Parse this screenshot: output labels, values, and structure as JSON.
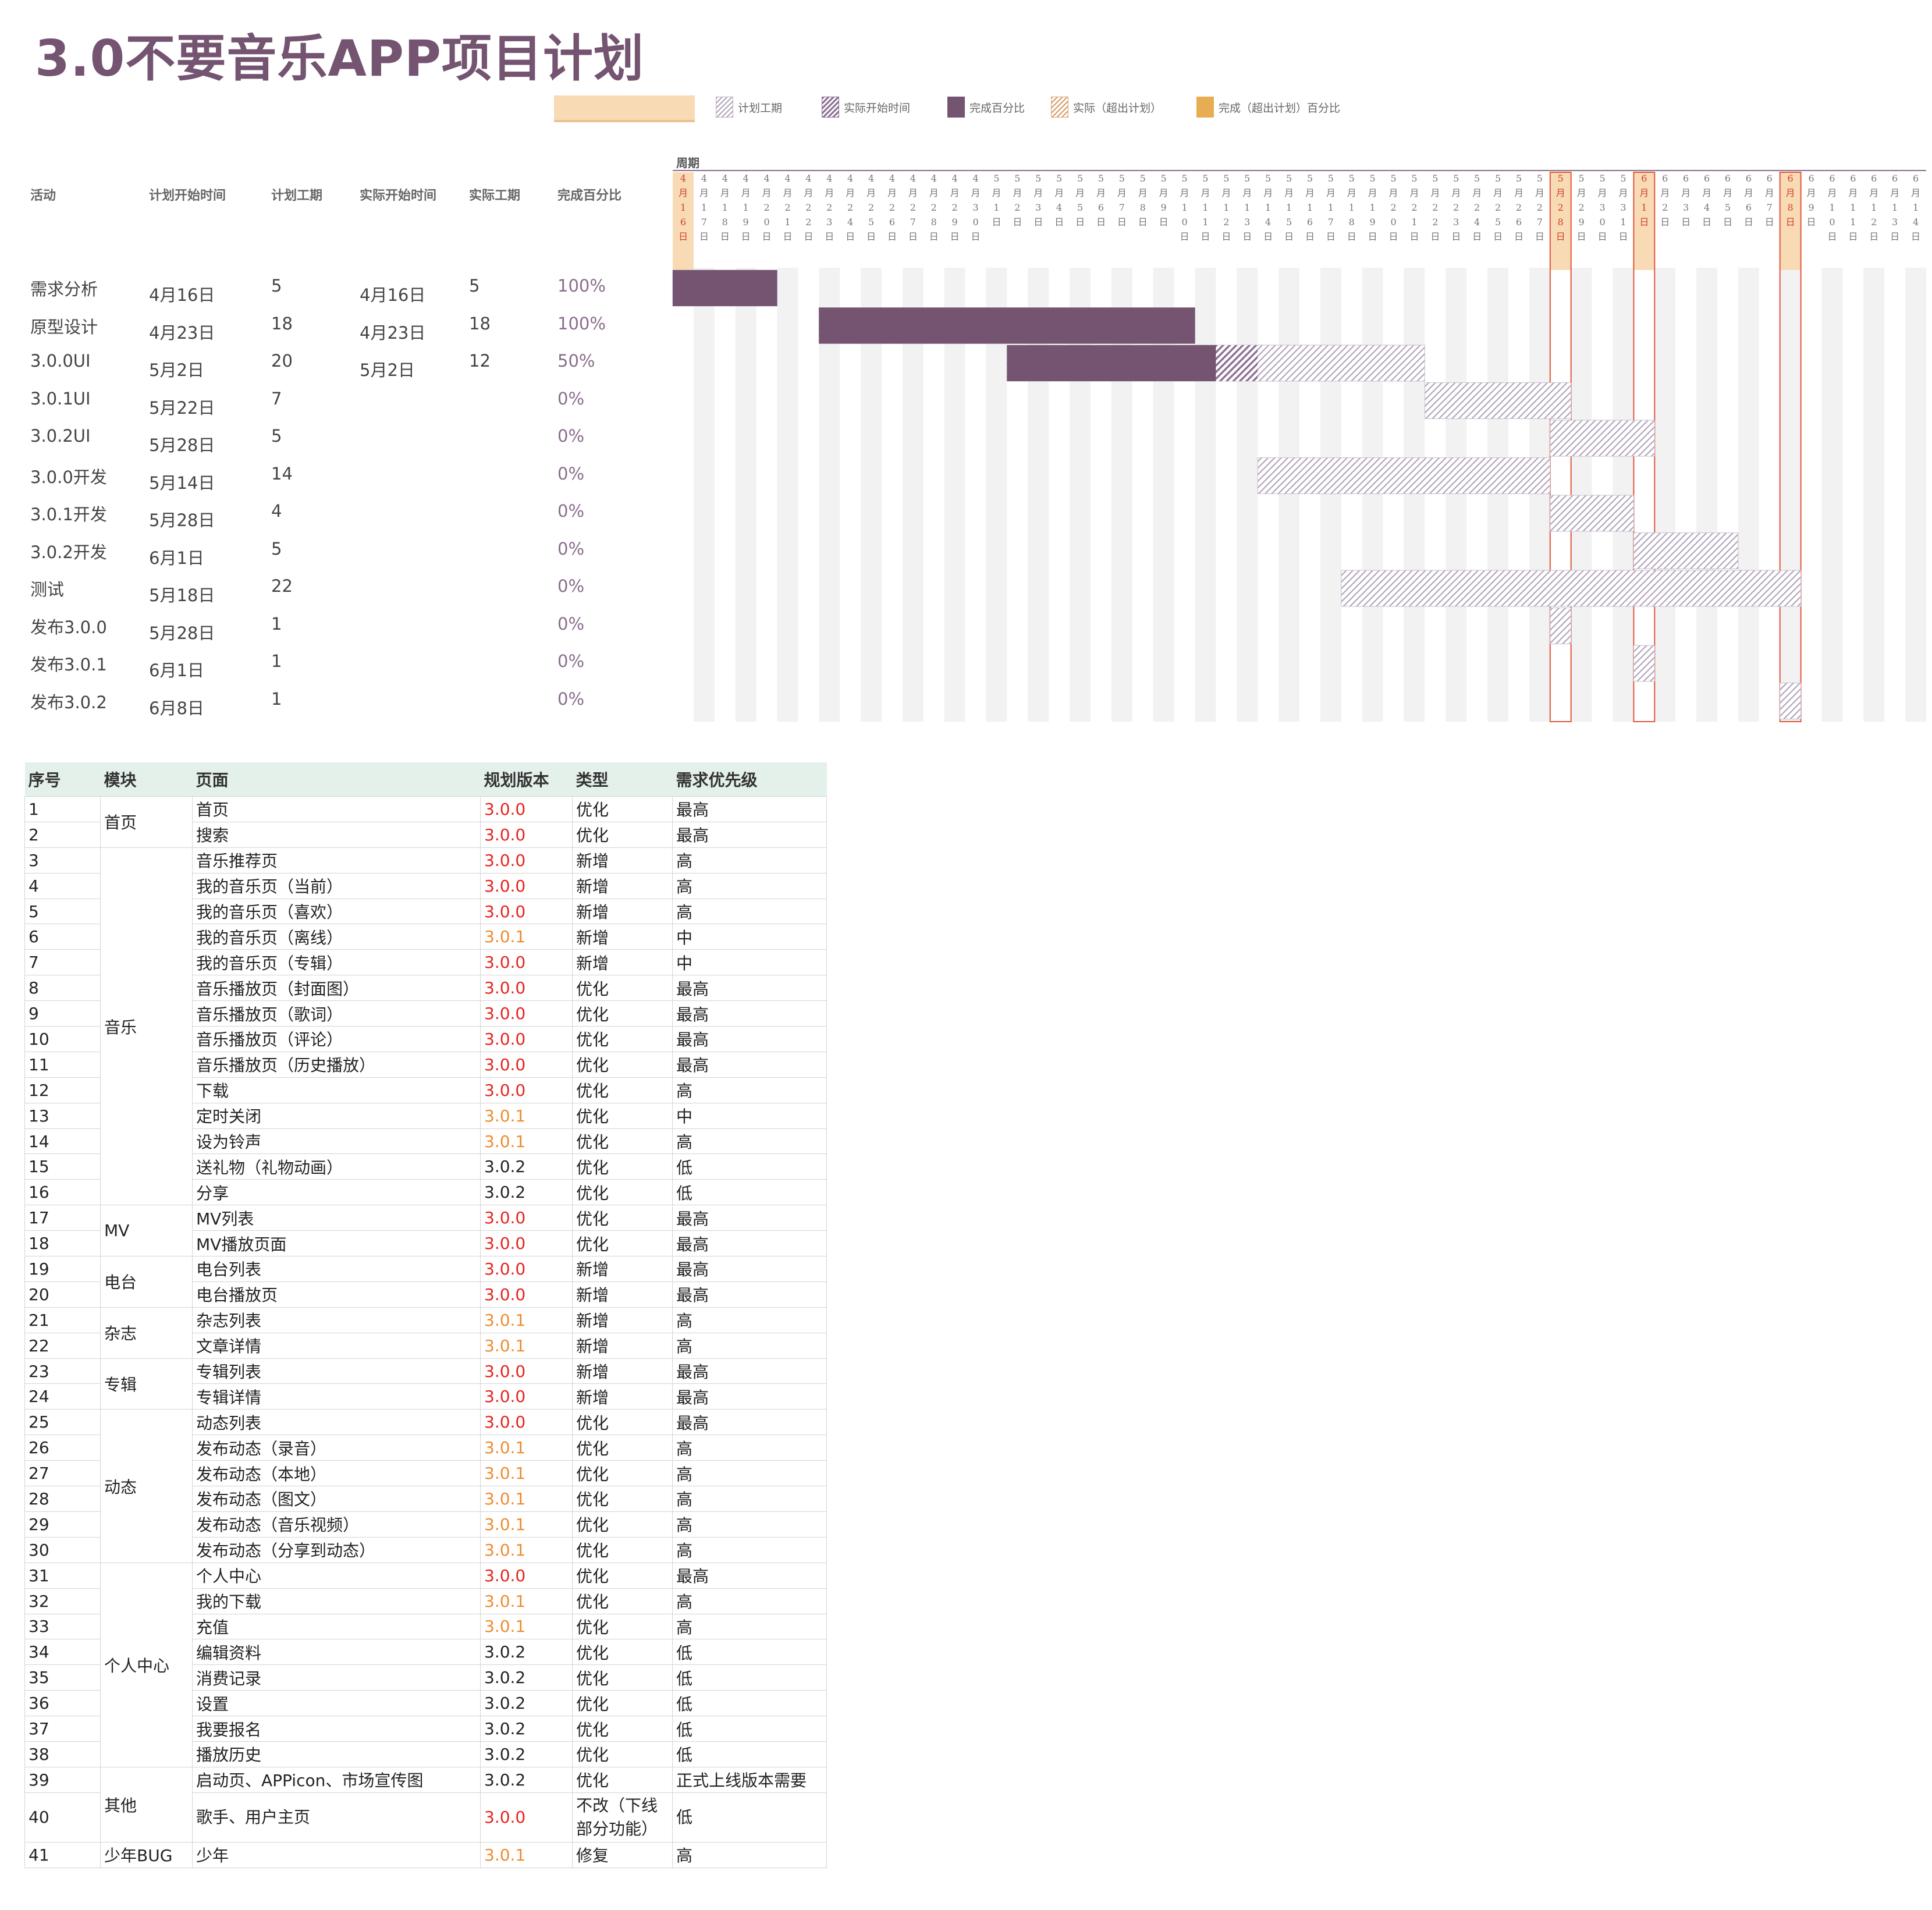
{
  "title": "3.0不要音乐APP项目计划",
  "legend": [
    {
      "key": "plan",
      "label": "计划工期"
    },
    {
      "key": "actual",
      "label": "实际开始时间"
    },
    {
      "key": "done",
      "label": "完成百分比"
    },
    {
      "key": "over",
      "label": "实际（超出计划）"
    },
    {
      "key": "overdone",
      "label": "完成（超出计划）百分比"
    }
  ],
  "colors": {
    "title": "#745470",
    "done": "#745470",
    "plan": "#b3a5bb",
    "actual": "#8e7295",
    "over": "#d59b66",
    "overdone": "#e8ad52",
    "highlight": "#f8dbb5",
    "today_line": "#e0573c",
    "version_300": "#e8231e",
    "version_301": "#ef8b30",
    "table_header": "#e4f0ea"
  },
  "table_headers": {
    "activity": "活动",
    "plan_start": "计划开始时间",
    "plan_duration": "计划工期",
    "actual_start": "实际开始时间",
    "actual_duration": "实际工期",
    "percent": "完成百分比",
    "period": "周期"
  },
  "chart_data": {
    "type": "gantt",
    "period_label": "周期",
    "dates": [
      "4月16日",
      "4月17日",
      "4月18日",
      "4月19日",
      "4月20日",
      "4月21日",
      "4月22日",
      "4月23日",
      "4月24日",
      "4月25日",
      "4月26日",
      "4月27日",
      "4月28日",
      "4月29日",
      "4月30日",
      "5月1日",
      "5月2日",
      "5月3日",
      "5月4日",
      "5月5日",
      "5月6日",
      "5月7日",
      "5月8日",
      "5月9日",
      "5月10日",
      "5月11日",
      "5月12日",
      "5月13日",
      "5月14日",
      "5月15日",
      "5月16日",
      "5月17日",
      "5月18日",
      "5月19日",
      "5月20日",
      "5月21日",
      "5月22日",
      "5月23日",
      "5月24日",
      "5月25日",
      "5月26日",
      "5月27日",
      "5月28日",
      "5月29日",
      "5月30日",
      "5月31日",
      "6月1日",
      "6月2日",
      "6月3日",
      "6月4日",
      "6月5日",
      "6月6日",
      "6月7日",
      "6月8日",
      "6月9日",
      "6月10日",
      "6月11日",
      "6月12日",
      "6月13日",
      "6月14日"
    ],
    "highlight_dates": [
      "4月16日",
      "5月28日",
      "6月1日",
      "6月8日"
    ],
    "activities": [
      {
        "name": "需求分析",
        "plan_start": "4月16日",
        "plan_duration": "5",
        "actual_start": "4月16日",
        "actual_duration": "5",
        "percent": "100%",
        "plan_start_index": 0,
        "plan_days": 5,
        "actual_start_index": 0,
        "actual_days": 5,
        "complete": 1.0
      },
      {
        "name": "原型设计",
        "plan_start": "4月23日",
        "plan_duration": "18",
        "actual_start": "4月23日",
        "actual_duration": "18",
        "percent": "100%",
        "plan_start_index": 7,
        "plan_days": 18,
        "actual_start_index": 7,
        "actual_days": 18,
        "complete": 1.0
      },
      {
        "name": "3.0.0UI",
        "plan_start": "5月2日",
        "plan_duration": "20",
        "actual_start": "5月2日",
        "actual_duration": "12",
        "percent": "50%",
        "plan_start_index": 16,
        "plan_days": 20,
        "actual_start_index": 16,
        "actual_days": 12,
        "complete": 0.5
      },
      {
        "name": "3.0.1UI",
        "plan_start": "5月22日",
        "plan_duration": "7",
        "actual_start": "",
        "actual_duration": "",
        "percent": "0%",
        "plan_start_index": 36,
        "plan_days": 7,
        "actual_start_index": null,
        "actual_days": 0,
        "complete": 0
      },
      {
        "name": "3.0.2UI",
        "plan_start": "5月28日",
        "plan_duration": "5",
        "actual_start": "",
        "actual_duration": "",
        "percent": "0%",
        "plan_start_index": 42,
        "plan_days": 5,
        "actual_start_index": null,
        "actual_days": 0,
        "complete": 0
      },
      {
        "name": "3.0.0开发",
        "plan_start": "5月14日",
        "plan_duration": "14",
        "actual_start": "",
        "actual_duration": "",
        "percent": "0%",
        "plan_start_index": 28,
        "plan_days": 14,
        "actual_start_index": null,
        "actual_days": 0,
        "complete": 0
      },
      {
        "name": "3.0.1开发",
        "plan_start": "5月28日",
        "plan_duration": "4",
        "actual_start": "",
        "actual_duration": "",
        "percent": "0%",
        "plan_start_index": 42,
        "plan_days": 4,
        "actual_start_index": null,
        "actual_days": 0,
        "complete": 0
      },
      {
        "name": "3.0.2开发",
        "plan_start": "6月1日",
        "plan_duration": "5",
        "actual_start": "",
        "actual_duration": "",
        "percent": "0%",
        "plan_start_index": 46,
        "plan_days": 5,
        "actual_start_index": null,
        "actual_days": 0,
        "complete": 0
      },
      {
        "name": "测试",
        "plan_start": "5月18日",
        "plan_duration": "22",
        "actual_start": "",
        "actual_duration": "",
        "percent": "0%",
        "plan_start_index": 32,
        "plan_days": 22,
        "actual_start_index": null,
        "actual_days": 0,
        "complete": 0
      },
      {
        "name": "发布3.0.0",
        "plan_start": "5月28日",
        "plan_duration": "1",
        "actual_start": "",
        "actual_duration": "",
        "percent": "0%",
        "plan_start_index": 42,
        "plan_days": 1,
        "actual_start_index": null,
        "actual_days": 0,
        "complete": 0
      },
      {
        "name": "发布3.0.1",
        "plan_start": "6月1日",
        "plan_duration": "1",
        "actual_start": "",
        "actual_duration": "",
        "percent": "0%",
        "plan_start_index": 46,
        "plan_days": 1,
        "actual_start_index": null,
        "actual_days": 0,
        "complete": 0
      },
      {
        "name": "发布3.0.2",
        "plan_start": "6月8日",
        "plan_duration": "1",
        "actual_start": "",
        "actual_duration": "",
        "percent": "0%",
        "plan_start_index": 53,
        "plan_days": 1,
        "actual_start_index": null,
        "actual_days": 0,
        "complete": 0
      }
    ]
  },
  "requirements": {
    "headers": [
      "序号",
      "模块",
      "页面",
      "规划版本",
      "类型",
      "需求优先级"
    ],
    "modules": [
      {
        "name": "首页",
        "rows": [
          {
            "no": "1",
            "page": "首页",
            "version": "3.0.0",
            "type": "优化",
            "priority": "最高"
          },
          {
            "no": "2",
            "page": "搜索",
            "version": "3.0.0",
            "type": "优化",
            "priority": "最高"
          }
        ]
      },
      {
        "name": "音乐",
        "rows": [
          {
            "no": "3",
            "page": "音乐推荐页",
            "version": "3.0.0",
            "type": "新增",
            "priority": "高"
          },
          {
            "no": "4",
            "page": "我的音乐页（当前）",
            "version": "3.0.0",
            "type": "新增",
            "priority": "高"
          },
          {
            "no": "5",
            "page": "我的音乐页（喜欢）",
            "version": "3.0.0",
            "type": "新增",
            "priority": "高"
          },
          {
            "no": "6",
            "page": "我的音乐页（离线）",
            "version": "3.0.1",
            "type": "新增",
            "priority": "中"
          },
          {
            "no": "7",
            "page": "我的音乐页（专辑）",
            "version": "3.0.0",
            "type": "新增",
            "priority": "中"
          },
          {
            "no": "8",
            "page": "音乐播放页（封面图）",
            "version": "3.0.0",
            "type": "优化",
            "priority": "最高"
          },
          {
            "no": "9",
            "page": "音乐播放页（歌词）",
            "version": "3.0.0",
            "type": "优化",
            "priority": "最高"
          },
          {
            "no": "10",
            "page": "音乐播放页（评论）",
            "version": "3.0.0",
            "type": "优化",
            "priority": "最高"
          },
          {
            "no": "11",
            "page": "音乐播放页（历史播放）",
            "version": "3.0.0",
            "type": "优化",
            "priority": "最高"
          },
          {
            "no": "12",
            "page": "下载",
            "version": "3.0.0",
            "type": "优化",
            "priority": "高"
          },
          {
            "no": "13",
            "page": "定时关闭",
            "version": "3.0.1",
            "type": "优化",
            "priority": "中"
          },
          {
            "no": "14",
            "page": "设为铃声",
            "version": "3.0.1",
            "type": "优化",
            "priority": "高"
          },
          {
            "no": "15",
            "page": "送礼物（礼物动画）",
            "version": "3.0.2",
            "type": "优化",
            "priority": "低"
          },
          {
            "no": "16",
            "page": "分享",
            "version": "3.0.2",
            "type": "优化",
            "priority": "低"
          }
        ]
      },
      {
        "name": "MV",
        "rows": [
          {
            "no": "17",
            "page": "MV列表",
            "version": "3.0.0",
            "type": "优化",
            "priority": "最高"
          },
          {
            "no": "18",
            "page": "MV播放页面",
            "version": "3.0.0",
            "type": "优化",
            "priority": "最高"
          }
        ]
      },
      {
        "name": "电台",
        "rows": [
          {
            "no": "19",
            "page": "电台列表",
            "version": "3.0.0",
            "type": "新增",
            "priority": "最高"
          },
          {
            "no": "20",
            "page": "电台播放页",
            "version": "3.0.0",
            "type": "新增",
            "priority": "最高"
          }
        ]
      },
      {
        "name": "杂志",
        "rows": [
          {
            "no": "21",
            "page": "杂志列表",
            "version": "3.0.1",
            "type": "新增",
            "priority": "高"
          },
          {
            "no": "22",
            "page": "文章详情",
            "version": "3.0.1",
            "type": "新增",
            "priority": "高"
          }
        ]
      },
      {
        "name": "专辑",
        "rows": [
          {
            "no": "23",
            "page": "专辑列表",
            "version": "3.0.0",
            "type": "新增",
            "priority": "最高"
          },
          {
            "no": "24",
            "page": "专辑详情",
            "version": "3.0.0",
            "type": "新增",
            "priority": "最高"
          }
        ]
      },
      {
        "name": "动态",
        "rows": [
          {
            "no": "25",
            "page": "动态列表",
            "version": "3.0.0",
            "type": "优化",
            "priority": "最高"
          },
          {
            "no": "26",
            "page": "发布动态（录音）",
            "version": "3.0.1",
            "type": "优化",
            "priority": "高"
          },
          {
            "no": "27",
            "page": "发布动态（本地）",
            "version": "3.0.1",
            "type": "优化",
            "priority": "高"
          },
          {
            "no": "28",
            "page": "发布动态（图文）",
            "version": "3.0.1",
            "type": "优化",
            "priority": "高"
          },
          {
            "no": "29",
            "page": "发布动态（音乐视频）",
            "version": "3.0.1",
            "type": "优化",
            "priority": "高"
          },
          {
            "no": "30",
            "page": "发布动态（分享到动态）",
            "version": "3.0.1",
            "type": "优化",
            "priority": "高"
          }
        ]
      },
      {
        "name": "个人中心",
        "rows": [
          {
            "no": "31",
            "page": "个人中心",
            "version": "3.0.0",
            "type": "优化",
            "priority": "最高"
          },
          {
            "no": "32",
            "page": "我的下载",
            "version": "3.0.1",
            "type": "优化",
            "priority": "高"
          },
          {
            "no": "33",
            "page": "充值",
            "version": "3.0.1",
            "type": "优化",
            "priority": "高"
          },
          {
            "no": "34",
            "page": "编辑资料",
            "version": "3.0.2",
            "type": "优化",
            "priority": "低"
          },
          {
            "no": "35",
            "page": "消费记录",
            "version": "3.0.2",
            "type": "优化",
            "priority": "低"
          },
          {
            "no": "36",
            "page": "设置",
            "version": "3.0.2",
            "type": "优化",
            "priority": "低"
          },
          {
            "no": "37",
            "page": "我要报名",
            "version": "3.0.2",
            "type": "优化",
            "priority": "低"
          },
          {
            "no": "38",
            "page": "播放历史",
            "version": "3.0.2",
            "type": "优化",
            "priority": "低"
          }
        ]
      },
      {
        "name": "其他",
        "rows": [
          {
            "no": "39",
            "page": "启动页、APPicon、市场宣传图",
            "version": "3.0.2",
            "type": "优化",
            "priority": "正式上线版本需要"
          },
          {
            "no": "40",
            "page": "歌手、用户主页",
            "version": "3.0.0",
            "type": "不改（下线部分功能）",
            "priority": "低",
            "tall": true
          }
        ]
      },
      {
        "name": "少年BUG",
        "rows": [
          {
            "no": "41",
            "page": "少年",
            "version": "3.0.1",
            "type": "修复",
            "priority": "高"
          }
        ]
      }
    ]
  }
}
